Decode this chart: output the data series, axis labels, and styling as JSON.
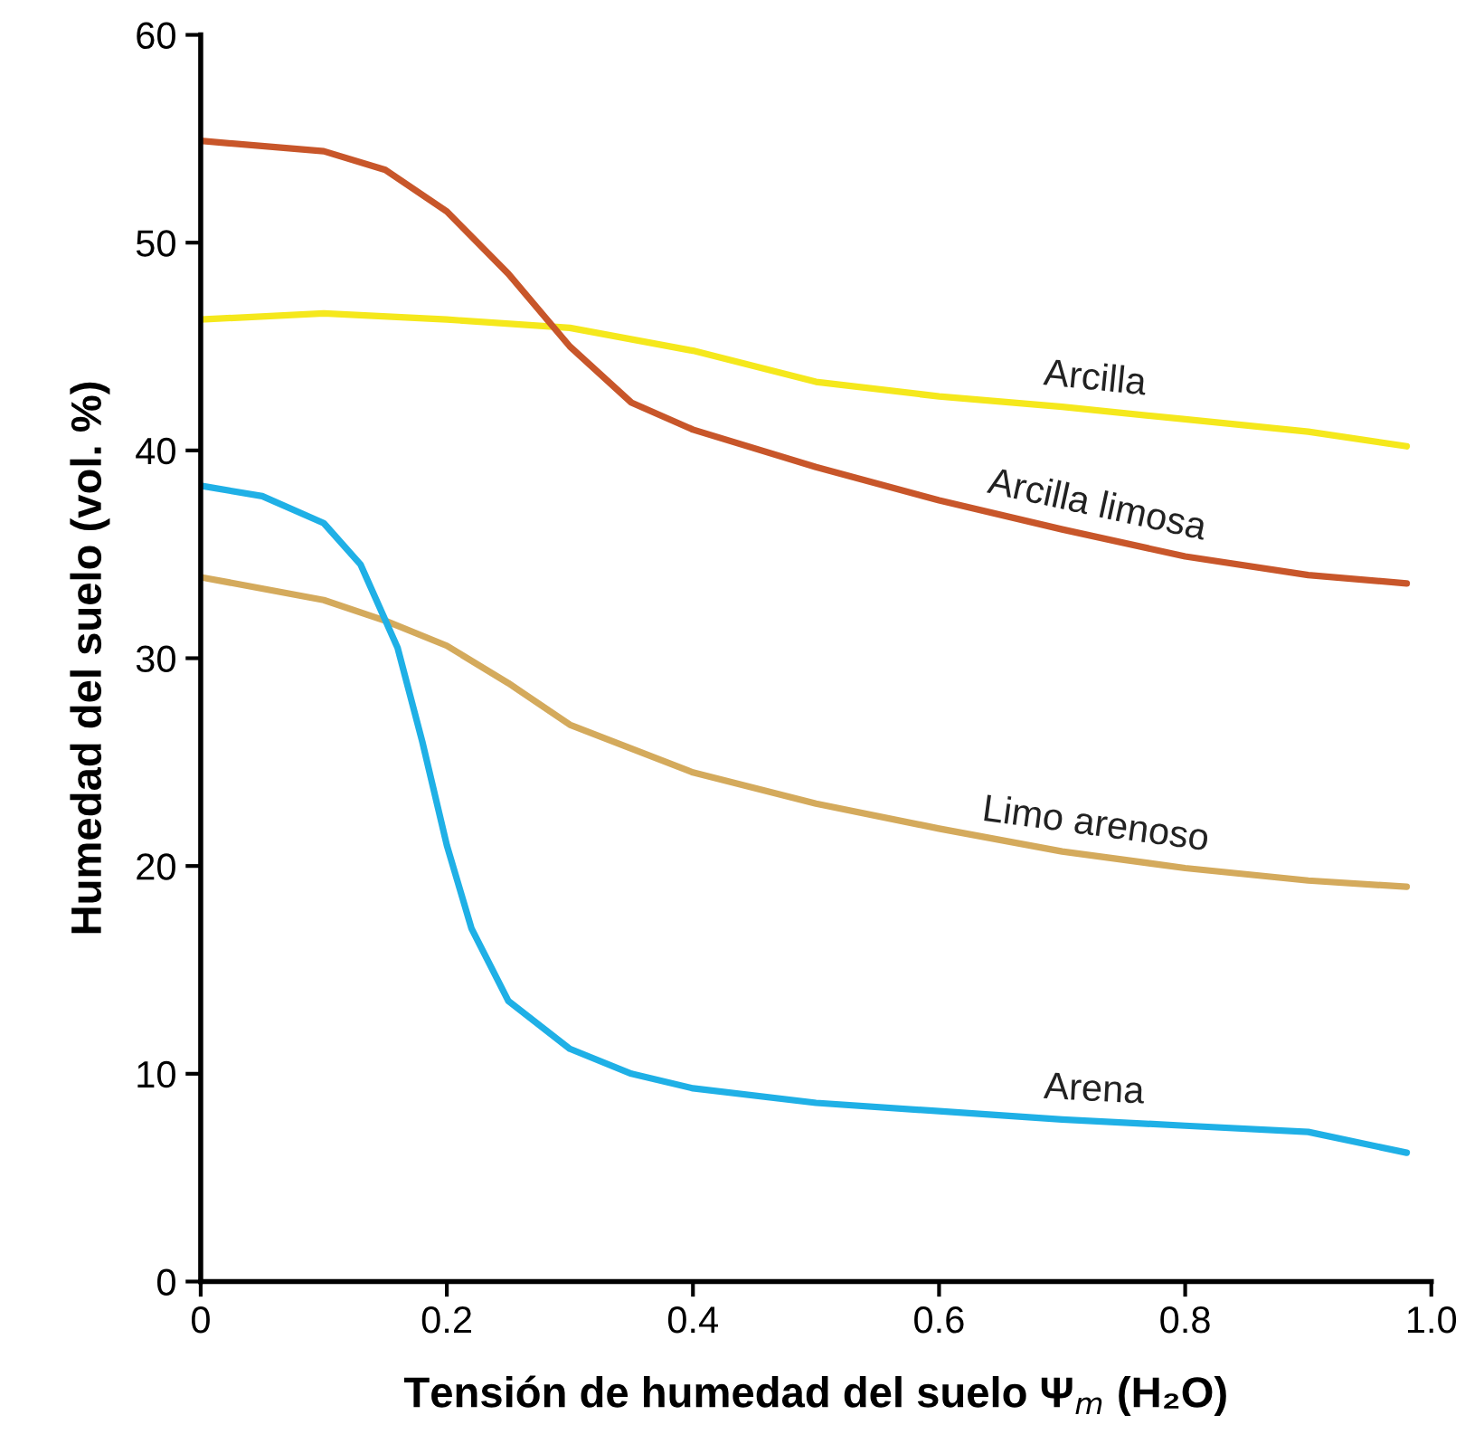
{
  "chart_data": {
    "type": "line",
    "xlabel": "Tensión de humedad del suelo Ψ$_{m}$ (H₂O)",
    "ylabel": "Humedad del suelo (vol. %)",
    "xlim": [
      0,
      1
    ],
    "ylim": [
      0,
      60
    ],
    "xticks": [
      0,
      0.2,
      0.4,
      0.6,
      0.8,
      {
        "value": 1,
        "label": "1.0"
      }
    ],
    "yticks": [
      0,
      10,
      20,
      30,
      40,
      50,
      60
    ],
    "grid": false,
    "legend": false,
    "marker": "none",
    "line_style": "solid",
    "series": [
      {
        "name": "Arcilla",
        "color": "#f5e81c",
        "x": [
          0,
          0.1,
          0.2,
          0.3,
          0.4,
          0.5,
          0.6,
          0.7,
          0.8,
          0.9,
          0.98
        ],
        "values": [
          46.3,
          46.6,
          46.3,
          45.9,
          44.8,
          43.3,
          42.6,
          42.1,
          41.5,
          40.9,
          40.2
        ]
      },
      {
        "name": "Arcilla limosa",
        "color": "#c8562a",
        "x": [
          0,
          0.1,
          0.15,
          0.2,
          0.25,
          0.3,
          0.35,
          0.4,
          0.5,
          0.6,
          0.7,
          0.8,
          0.9,
          0.98
        ],
        "values": [
          54.9,
          54.4,
          53.5,
          51.5,
          48.5,
          45,
          42.3,
          41,
          39.2,
          37.6,
          36.2,
          34.9,
          34,
          33.6
        ]
      },
      {
        "name": "Limo arenoso",
        "color": "#d4aa5c",
        "x": [
          0,
          0.1,
          0.15,
          0.2,
          0.25,
          0.3,
          0.4,
          0.5,
          0.6,
          0.7,
          0.8,
          0.9,
          0.98
        ],
        "values": [
          33.9,
          32.8,
          31.8,
          30.6,
          28.8,
          26.8,
          24.5,
          23,
          21.8,
          20.7,
          19.9,
          19.3,
          19.0
        ]
      },
      {
        "name": "Arena",
        "color": "#1fb0e6",
        "x": [
          0,
          0.05,
          0.1,
          0.13,
          0.16,
          0.18,
          0.2,
          0.22,
          0.25,
          0.3,
          0.35,
          0.4,
          0.5,
          0.6,
          0.7,
          0.8,
          0.9,
          0.98
        ],
        "values": [
          38.3,
          37.8,
          36.5,
          34.5,
          30.5,
          26,
          21,
          17,
          13.5,
          11.2,
          10,
          9.3,
          8.6,
          8.2,
          7.8,
          7.5,
          7.2,
          6.2
        ]
      }
    ]
  }
}
